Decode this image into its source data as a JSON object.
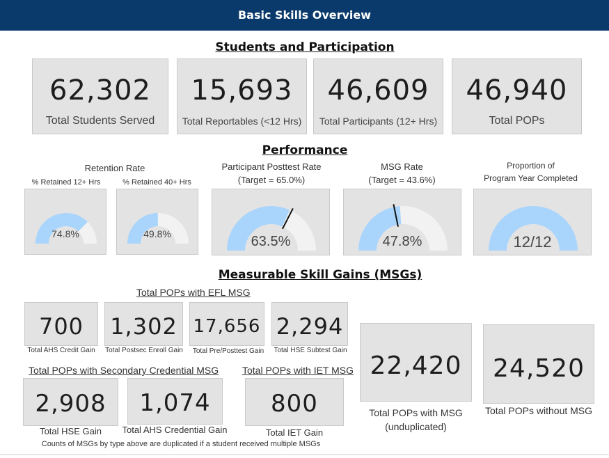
{
  "header": {
    "title": "Basic Skills Overview"
  },
  "students": {
    "title": "Students and Participation",
    "cards": [
      {
        "value": "62,302",
        "label": "Total Students Served"
      },
      {
        "value": "15,693",
        "label": "Total Reportables (<12 Hrs)"
      },
      {
        "value": "46,609",
        "label": "Total Participants (12+ Hrs)"
      },
      {
        "value": "46,940",
        "label": "Total POPs"
      }
    ]
  },
  "performance": {
    "title": "Performance",
    "retention_title": "Retention Rate",
    "gauges": [
      {
        "title": "% Retained 12+ Hrs",
        "value_text": "74.8%",
        "fraction": 0.748
      },
      {
        "title": "% Retained 40+ Hrs",
        "value_text": "49.8%",
        "fraction": 0.498
      },
      {
        "title_line1": "Participant Posttest Rate",
        "title_line2": "(Target = 65.0%)",
        "value_text": "63.5%",
        "fraction": 0.635,
        "target": 0.65
      },
      {
        "title_line1": "MSG Rate",
        "title_line2": "(Target = 43.6%)",
        "value_text": "47.8%",
        "fraction": 0.478,
        "target": 0.436
      },
      {
        "title_line1": "Proportion of",
        "title_line2": "Program Year Completed",
        "value_text": "12/12",
        "fraction": 1.0
      }
    ]
  },
  "msg": {
    "title": "Measurable Skill Gains (MSGs)",
    "efl_link": "Total POPs with EFL MSG",
    "efl_cards": [
      {
        "value": "700",
        "label": "Total AHS Credit Gain"
      },
      {
        "value": "1,302",
        "label": "Total Postsec Enroll Gain"
      },
      {
        "value": "17,656",
        "label": "Total Pre/Posttest Gain"
      },
      {
        "value": "2,294",
        "label": "Total HSE Subtest Gain"
      }
    ],
    "secondary_link": "Total POPs with Secondary Credential MSG",
    "secondary_cards": [
      {
        "value": "2,908",
        "label": "Total HSE Gain"
      },
      {
        "value": "1,074",
        "label": "Total AHS Credential Gain"
      }
    ],
    "iet_link": "Total POPs with IET MSG",
    "iet_card": {
      "value": "800",
      "label": "Total IET Gain"
    },
    "with_msg": {
      "value": "22,420",
      "label_line1": "Total POPs with MSG",
      "label_line2": "(unduplicated)"
    },
    "without_msg": {
      "value": "24,520",
      "label": "Total POPs without MSG"
    },
    "footnote": "Counts of MSGs by type above are duplicated if a student received multiple MSGs"
  },
  "colors": {
    "header_bg": "#0a3a6b",
    "gauge_fill": "#a9d4fb",
    "gauge_track": "#f2f2f2",
    "card_bg": "#e3e3e3"
  }
}
